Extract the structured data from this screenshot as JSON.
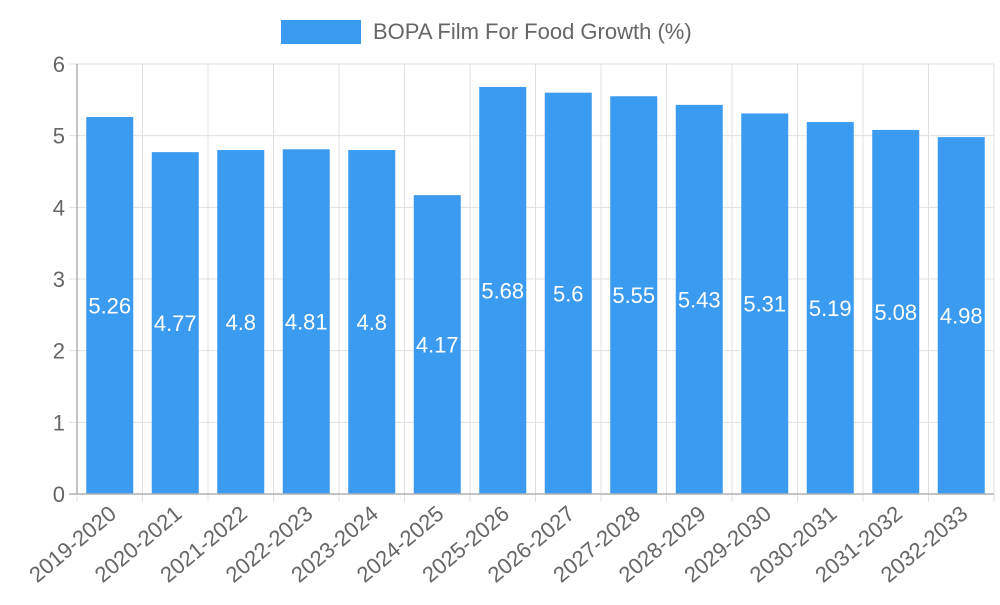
{
  "chart_data": {
    "type": "bar",
    "title": "",
    "xlabel": "",
    "ylabel": "",
    "ylim": [
      0,
      6
    ],
    "yticks": [
      0,
      1,
      2,
      3,
      4,
      5,
      6
    ],
    "grid": true,
    "legend_position": "top-center",
    "categories": [
      "2019-2020",
      "2020-2021",
      "2021-2022",
      "2022-2023",
      "2023-2024",
      "2024-2025",
      "2025-2026",
      "2026-2027",
      "2027-2028",
      "2028-2029",
      "2029-2030",
      "2030-2031",
      "2031-2032",
      "2032-2033"
    ],
    "series": [
      {
        "name": "BOPA Film For Food Growth (%)",
        "color": "#3a9bf0",
        "values": [
          5.26,
          4.77,
          4.8,
          4.81,
          4.8,
          4.17,
          5.68,
          5.6,
          5.55,
          5.43,
          5.31,
          5.19,
          5.08,
          4.98
        ]
      }
    ]
  }
}
